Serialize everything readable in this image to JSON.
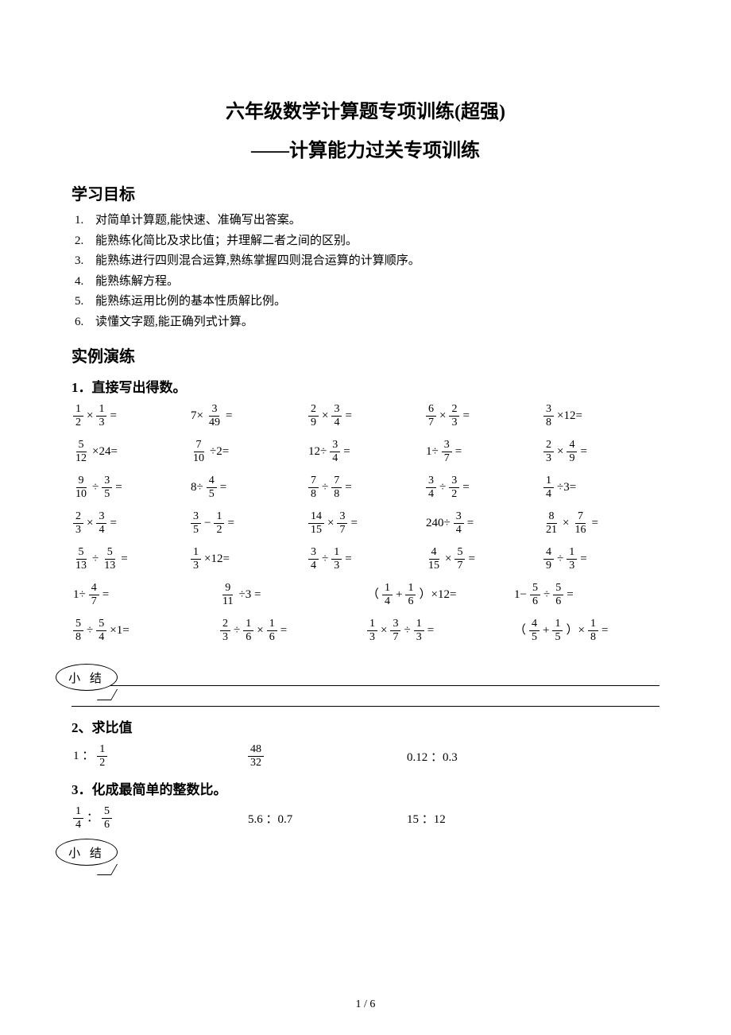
{
  "title": "六年级数学计算题专项训练(超强)",
  "subtitle": "——计算能力过关专项训练",
  "sections": {
    "goals_h": "学习目标",
    "practice_h": "实例演练"
  },
  "goals": [
    {
      "n": "1.",
      "t": "对简单计算题,能快速、准确写出答案。"
    },
    {
      "n": "2.",
      "t": "能熟练化简比及求比值；并理解二者之间的区别。"
    },
    {
      "n": "3.",
      "t": "能熟练进行四则混合运算,熟练掌握四则混合运算的计算顺序。"
    },
    {
      "n": "4.",
      "t": "能熟练解方程。"
    },
    {
      "n": "5.",
      "t": "能熟练运用比例的基本性质解比例。"
    },
    {
      "n": "6.",
      "t": "读懂文字题,能正确列式计算。"
    }
  ],
  "q1_label": "1．直接写出得数。",
  "q2_label": "2、求比值",
  "q3_label": "3．化成最简单的整数比。",
  "summary_label": "小 结",
  "rows5": [
    [
      {
        "e": [
          {
            "f": [
              1,
              2
            ]
          },
          {
            "t": "×"
          },
          {
            "f": [
              1,
              3
            ]
          },
          {
            "t": "="
          }
        ]
      },
      {
        "e": [
          {
            "t": "7×"
          },
          {
            "f": [
              3,
              49
            ]
          },
          {
            "t": "="
          }
        ]
      },
      {
        "e": [
          {
            "f": [
              2,
              9
            ]
          },
          {
            "t": "×"
          },
          {
            "f": [
              3,
              4
            ]
          },
          {
            "t": "="
          }
        ]
      },
      {
        "e": [
          {
            "f": [
              6,
              7
            ]
          },
          {
            "t": "×"
          },
          {
            "f": [
              2,
              3
            ]
          },
          {
            "t": "="
          }
        ]
      },
      {
        "e": [
          {
            "f": [
              3,
              8
            ]
          },
          {
            "t": "×12="
          }
        ]
      }
    ],
    [
      {
        "e": [
          {
            "f": [
              5,
              12
            ]
          },
          {
            "t": "×24="
          }
        ]
      },
      {
        "e": [
          {
            "f": [
              7,
              10
            ]
          },
          {
            "t": "÷2="
          }
        ]
      },
      {
        "e": [
          {
            "t": "12÷"
          },
          {
            "f": [
              3,
              4
            ]
          },
          {
            "t": "="
          }
        ]
      },
      {
        "e": [
          {
            "t": "1÷"
          },
          {
            "f": [
              3,
              7
            ]
          },
          {
            "t": "="
          }
        ]
      },
      {
        "e": [
          {
            "f": [
              2,
              3
            ]
          },
          {
            "t": "×"
          },
          {
            "f": [
              4,
              9
            ]
          },
          {
            "t": "="
          }
        ]
      }
    ],
    [
      {
        "e": [
          {
            "f": [
              9,
              10
            ]
          },
          {
            "t": "÷"
          },
          {
            "f": [
              3,
              5
            ]
          },
          {
            "t": "="
          }
        ]
      },
      {
        "e": [
          {
            "t": "8÷"
          },
          {
            "f": [
              4,
              5
            ]
          },
          {
            "t": "="
          }
        ]
      },
      {
        "e": [
          {
            "f": [
              7,
              8
            ]
          },
          {
            "t": "÷"
          },
          {
            "f": [
              7,
              8
            ]
          },
          {
            "t": "="
          }
        ]
      },
      {
        "e": [
          {
            "f": [
              3,
              4
            ]
          },
          {
            "t": "÷"
          },
          {
            "f": [
              3,
              2
            ]
          },
          {
            "t": "="
          }
        ]
      },
      {
        "e": [
          {
            "f": [
              1,
              4
            ]
          },
          {
            "t": "÷3="
          }
        ]
      }
    ],
    [
      {
        "e": [
          {
            "f": [
              2,
              3
            ]
          },
          {
            "t": "×"
          },
          {
            "f": [
              3,
              4
            ]
          },
          {
            "t": "="
          }
        ]
      },
      {
        "e": [
          {
            "f": [
              3,
              5
            ]
          },
          {
            "t": "−"
          },
          {
            "f": [
              1,
              2
            ]
          },
          {
            "t": "="
          }
        ]
      },
      {
        "e": [
          {
            "f": [
              14,
              15
            ]
          },
          {
            "t": "×"
          },
          {
            "f": [
              3,
              7
            ]
          },
          {
            "t": "="
          }
        ]
      },
      {
        "e": [
          {
            "t": "240÷"
          },
          {
            "f": [
              3,
              4
            ]
          },
          {
            "t": "="
          }
        ]
      },
      {
        "e": [
          {
            "f": [
              8,
              21
            ]
          },
          {
            "t": "×"
          },
          {
            "f": [
              7,
              16
            ]
          },
          {
            "t": "="
          }
        ]
      }
    ],
    [
      {
        "e": [
          {
            "f": [
              5,
              13
            ]
          },
          {
            "t": "÷"
          },
          {
            "f": [
              5,
              13
            ]
          },
          {
            "t": "="
          }
        ]
      },
      {
        "e": [
          {
            "f": [
              1,
              3
            ]
          },
          {
            "t": "×12="
          }
        ]
      },
      {
        "e": [
          {
            "f": [
              3,
              4
            ]
          },
          {
            "t": "÷"
          },
          {
            "f": [
              1,
              3
            ]
          },
          {
            "t": "="
          }
        ]
      },
      {
        "e": [
          {
            "f": [
              4,
              15
            ]
          },
          {
            "t": "×"
          },
          {
            "f": [
              5,
              7
            ]
          },
          {
            "t": "="
          }
        ]
      },
      {
        "e": [
          {
            "f": [
              4,
              9
            ]
          },
          {
            "t": "÷"
          },
          {
            "f": [
              1,
              3
            ]
          },
          {
            "t": "="
          }
        ]
      }
    ]
  ],
  "rows4": [
    [
      {
        "e": [
          {
            "t": "1÷"
          },
          {
            "f": [
              4,
              7
            ]
          },
          {
            "t": "="
          }
        ]
      },
      {
        "e": [
          {
            "f": [
              9,
              11
            ]
          },
          {
            "t": "÷3 ="
          }
        ]
      },
      {
        "e": [
          {
            "t": "（"
          },
          {
            "f": [
              1,
              4
            ]
          },
          {
            "t": "+"
          },
          {
            "f": [
              1,
              6
            ]
          },
          {
            "t": "）×12="
          }
        ]
      },
      {
        "e": [
          {
            "t": "1−"
          },
          {
            "f": [
              5,
              6
            ]
          },
          {
            "t": "÷"
          },
          {
            "f": [
              5,
              6
            ]
          },
          {
            "t": "="
          }
        ]
      }
    ],
    [
      {
        "e": [
          {
            "f": [
              5,
              8
            ]
          },
          {
            "t": "÷"
          },
          {
            "f": [
              5,
              4
            ]
          },
          {
            "t": "×1="
          }
        ]
      },
      {
        "e": [
          {
            "f": [
              2,
              3
            ]
          },
          {
            "t": "÷"
          },
          {
            "f": [
              1,
              6
            ]
          },
          {
            "t": "×"
          },
          {
            "f": [
              1,
              6
            ]
          },
          {
            "t": "="
          }
        ]
      },
      {
        "e": [
          {
            "f": [
              1,
              3
            ]
          },
          {
            "t": "×"
          },
          {
            "f": [
              3,
              7
            ]
          },
          {
            "t": "÷"
          },
          {
            "f": [
              1,
              3
            ]
          },
          {
            "t": "="
          }
        ]
      },
      {
        "e": [
          {
            "t": "（"
          },
          {
            "f": [
              4,
              5
            ]
          },
          {
            "t": "+"
          },
          {
            "f": [
              1,
              5
            ]
          },
          {
            "t": "）×"
          },
          {
            "f": [
              1,
              8
            ]
          },
          {
            "t": "="
          }
        ]
      }
    ]
  ],
  "q2_items": [
    {
      "e": [
        {
          "t": "1 ："
        },
        {
          "f": [
            1,
            2
          ]
        }
      ]
    },
    {
      "e": [
        {
          "f": [
            48,
            32
          ]
        }
      ]
    },
    {
      "e": [
        {
          "t": "0.12 ：0.3"
        }
      ]
    }
  ],
  "q3_items": [
    {
      "e": [
        {
          "f": [
            1,
            4
          ]
        },
        {
          "t": "："
        },
        {
          "f": [
            5,
            6
          ]
        }
      ]
    },
    {
      "e": [
        {
          "t": "5.6 ：0.7"
        }
      ]
    },
    {
      "e": [
        {
          "t": "15 ：12"
        }
      ]
    }
  ],
  "page_footer": "1 / 6",
  "colors": {
    "text": "#000000",
    "bg": "#ffffff",
    "rule": "#000000"
  },
  "fontsize": {
    "title": 24,
    "section": 20,
    "body": 15,
    "qlabel": 17,
    "footer": 14
  }
}
